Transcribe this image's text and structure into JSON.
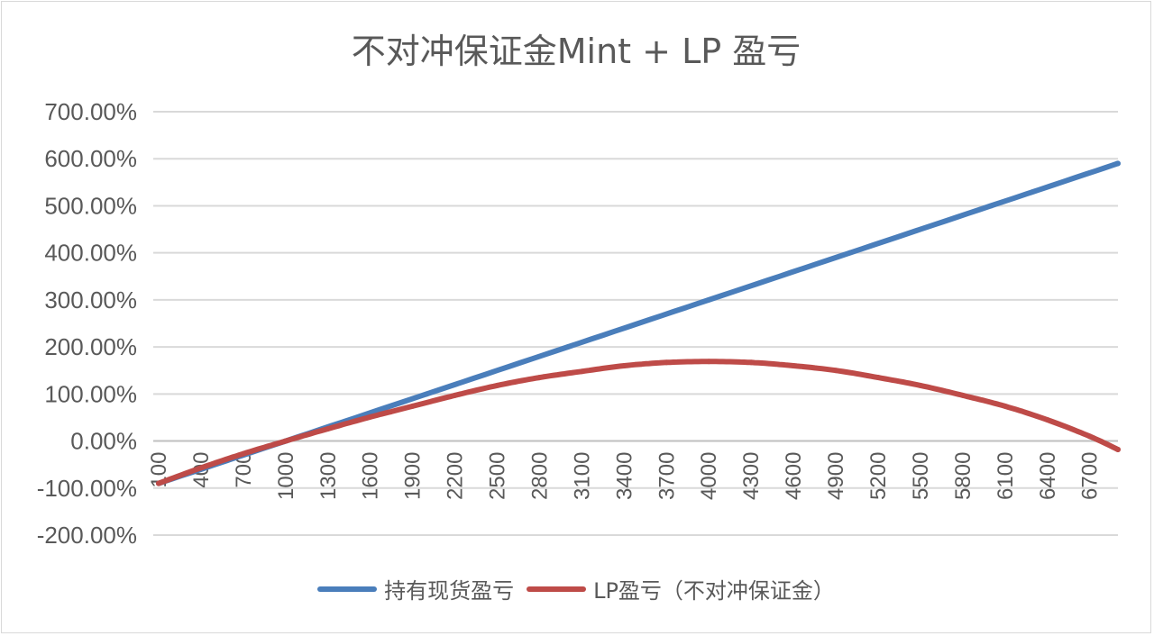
{
  "chart_data": {
    "type": "line",
    "title": "不对冲保证金Mint + LP 盈亏",
    "xlabel": "",
    "ylabel": "",
    "ylim": [
      -200,
      700
    ],
    "y_ticks": [
      "700.00%",
      "600.00%",
      "500.00%",
      "400.00%",
      "300.00%",
      "200.00%",
      "100.00%",
      "0.00%",
      "-100.00%",
      "-200.00%"
    ],
    "y_tick_values": [
      700,
      600,
      500,
      400,
      300,
      200,
      100,
      0,
      -100,
      -200
    ],
    "x_ticks": [
      "100",
      "400",
      "700",
      "1000",
      "1300",
      "1600",
      "1900",
      "2200",
      "2500",
      "2800",
      "3100",
      "3400",
      "3700",
      "4000",
      "4300",
      "4600",
      "4900",
      "5200",
      "5500",
      "5800",
      "6100",
      "6400",
      "6700"
    ],
    "x_range": [
      100,
      6900
    ],
    "legend_position": "bottom",
    "grid": true,
    "series": [
      {
        "name": "持有现货盈亏",
        "color": "#4a7ebb",
        "x": [
          100,
          1000,
          2000,
          3000,
          4000,
          5000,
          6000,
          6900
        ],
        "values": [
          -90,
          0,
          100,
          200,
          300,
          400,
          500,
          590
        ]
      },
      {
        "name": "LP盈亏（不对冲保证金）",
        "color": "#be4b48",
        "x": [
          100,
          400,
          700,
          1000,
          1300,
          1600,
          1900,
          2200,
          2500,
          2800,
          3100,
          3400,
          3700,
          4000,
          4300,
          4600,
          4900,
          5200,
          5500,
          5800,
          6100,
          6400,
          6700,
          6900
        ],
        "values": [
          -90,
          -57,
          -27,
          0,
          26,
          51,
          74,
          97,
          118,
          135,
          148,
          160,
          167,
          169,
          167,
          160,
          150,
          135,
          118,
          97,
          74,
          45,
          10,
          -18
        ]
      }
    ]
  }
}
